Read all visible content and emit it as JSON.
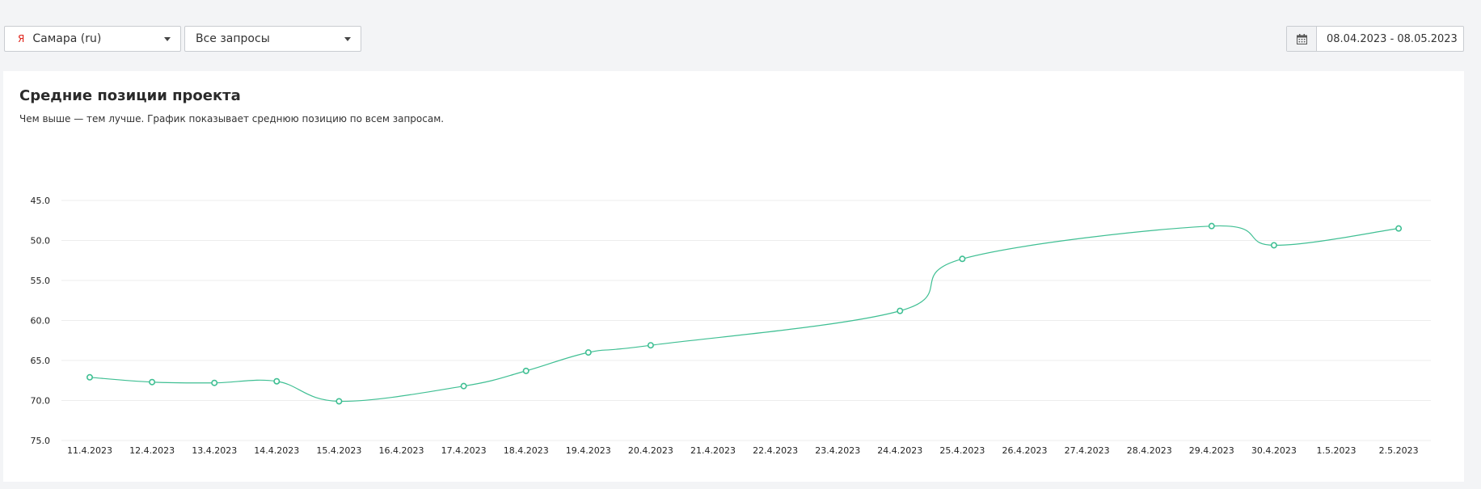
{
  "filters": {
    "region": {
      "icon": "yandex-icon",
      "icon_glyph": "Я",
      "value": "Самара (ru)"
    },
    "queries": {
      "value": "Все запросы"
    },
    "date_range": {
      "icon": "calendar-icon",
      "value": "08.04.2023 - 08.05.2023"
    }
  },
  "card": {
    "title": "Средние позиции проекта",
    "subtitle": "Чем выше — тем лучше. График показывает среднюю позицию по всем запросам."
  },
  "colors": {
    "line": "#3fbf93",
    "grid": "#ececec",
    "background": "#f3f4f6"
  },
  "chart_data": {
    "type": "line",
    "title": "Средние позиции проекта",
    "y_inverted": true,
    "ylim": [
      45,
      75
    ],
    "y_ticks": [
      "45.0",
      "50.0",
      "55.0",
      "60.0",
      "65.0",
      "70.0",
      "75.0"
    ],
    "grid": "horizontal",
    "x": [
      "11.4.2023",
      "12.4.2023",
      "13.4.2023",
      "14.4.2023",
      "15.4.2023",
      "16.4.2023",
      "17.4.2023",
      "18.4.2023",
      "19.4.2023",
      "20.4.2023",
      "21.4.2023",
      "22.4.2023",
      "23.4.2023",
      "24.4.2023",
      "25.4.2023",
      "26.4.2023",
      "27.4.2023",
      "28.4.2023",
      "29.4.2023",
      "30.4.2023",
      "1.5.2023",
      "2.5.2023"
    ],
    "series": [
      {
        "values": [
          67.1,
          67.7,
          67.8,
          67.6,
          70.1,
          null,
          68.2,
          66.3,
          64.0,
          63.1,
          null,
          null,
          null,
          58.8,
          52.3,
          null,
          null,
          null,
          48.2,
          50.6,
          null,
          48.5
        ]
      }
    ]
  }
}
